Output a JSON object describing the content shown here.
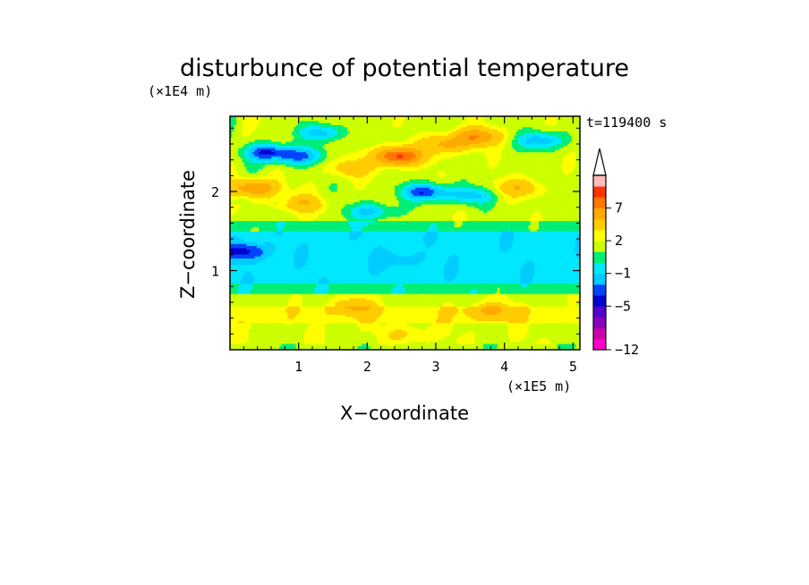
{
  "chart_data": {
    "type": "heatmap",
    "title": "disturbunce of potential temperature",
    "time_label": "t=119400 s",
    "xlabel": "X−coordinate",
    "ylabel": "Z−coordinate",
    "x_unit": "(×1E5 m)",
    "y_unit": "(×1E4 m)",
    "xlim": [
      0,
      5.1
    ],
    "ylim": [
      0,
      2.95
    ],
    "x_ticks": [
      "1",
      "2",
      "3",
      "4",
      "5"
    ],
    "y_ticks": [
      "1",
      "2"
    ],
    "colorbar": {
      "levels": [
        -12,
        -11,
        -9,
        -7,
        -5,
        -3,
        -2,
        -1,
        0,
        1,
        2,
        3,
        5,
        7,
        9,
        11
      ],
      "labels": [
        "−12",
        "−5",
        "−1",
        "2",
        "7"
      ],
      "label_values": [
        -12,
        -5,
        -1,
        2,
        7
      ],
      "colors": [
        "#ff00cc",
        "#cc00aa",
        "#8800bb",
        "#5500cc",
        "#0000cc",
        "#0044ff",
        "#00ccff",
        "#00e8ff",
        "#00ee77",
        "#ccff00",
        "#ffff00",
        "#ffcc00",
        "#ffaa00",
        "#ff7700",
        "#ff3300",
        "#ffbbbb"
      ],
      "extend": "max"
    },
    "features": [
      {
        "x": 0.55,
        "z": 2.5,
        "value": -4.5
      },
      {
        "x": 1.0,
        "z": 2.45,
        "value": -3.5
      },
      {
        "x": 1.35,
        "z": 2.75,
        "value": -3
      },
      {
        "x": 0.35,
        "z": 2.05,
        "value": 5.5
      },
      {
        "x": 1.05,
        "z": 1.85,
        "value": 3
      },
      {
        "x": 1.75,
        "z": 2.3,
        "value": 2.5
      },
      {
        "x": 2.45,
        "z": 2.45,
        "value": 8
      },
      {
        "x": 3.15,
        "z": 2.6,
        "value": 4
      },
      {
        "x": 3.6,
        "z": 2.7,
        "value": 5
      },
      {
        "x": 2.85,
        "z": 2.0,
        "value": -4.5
      },
      {
        "x": 2.05,
        "z": 1.75,
        "value": -3
      },
      {
        "x": 3.5,
        "z": 1.95,
        "value": -3
      },
      {
        "x": 4.55,
        "z": 2.65,
        "value": -3.5
      },
      {
        "x": 4.2,
        "z": 2.05,
        "value": 3
      },
      {
        "x": 0.2,
        "z": 1.25,
        "value": -3
      },
      {
        "x": 2.5,
        "z": 1.15,
        "value": -1
      },
      {
        "x": 1.8,
        "z": 0.55,
        "value": 3
      },
      {
        "x": 3.8,
        "z": 0.5,
        "value": 3
      },
      {
        "x": 2.6,
        "z": 0.2,
        "value": 1.5
      }
    ]
  }
}
